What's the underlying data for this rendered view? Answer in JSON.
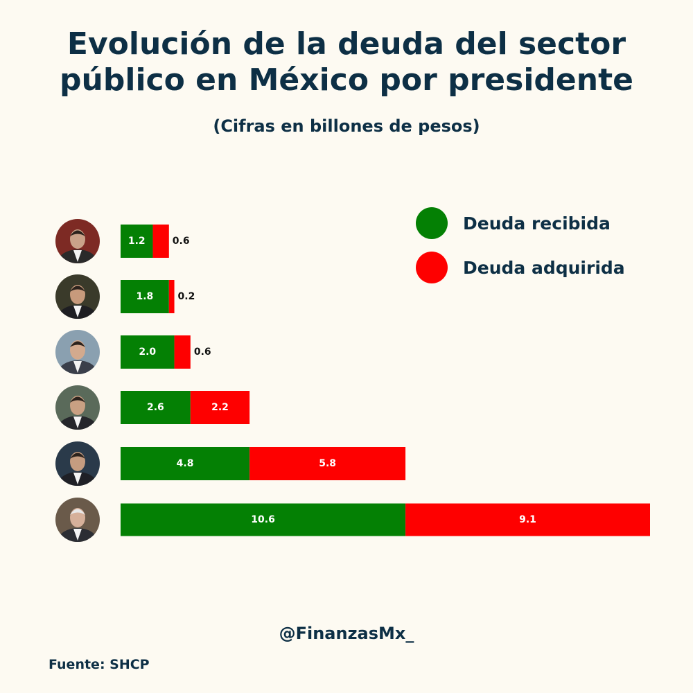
{
  "title_line1": "Evolución de la deuda del sector",
  "title_line2": "público en México por presidente",
  "subtitle": "(Cifras en billones de pesos)",
  "handle": "@FinanzasMx_",
  "source": "Fuente: SHCP",
  "colors": {
    "recibida": "#048004",
    "adquirida": "#fe0000"
  },
  "chart_data": {
    "type": "bar",
    "orientation": "horizontal",
    "stacked": true,
    "title": "Evolución de la deuda del sector público en México por presidente",
    "subtitle": "(Cifras en billones de pesos)",
    "categories": [
      "",
      "",
      "",
      "",
      "",
      ""
    ],
    "series": [
      {
        "name": "Deuda recibida",
        "values": [
          1.2,
          1.8,
          2.0,
          2.6,
          4.8,
          10.6
        ],
        "labels": [
          "1.2",
          "1.8",
          "2.0",
          "2.6",
          "4.8",
          "10.6"
        ]
      },
      {
        "name": "Deuda adquirida",
        "values": [
          0.6,
          0.2,
          0.6,
          2.2,
          5.8,
          9.1
        ],
        "labels": [
          "0.6",
          "0.2",
          "0.6",
          "2.2",
          "5.8",
          "9.1"
        ]
      }
    ],
    "xlim": [
      0,
      19.7
    ],
    "legend": "top-right",
    "grid": false,
    "axes_visible": false
  }
}
